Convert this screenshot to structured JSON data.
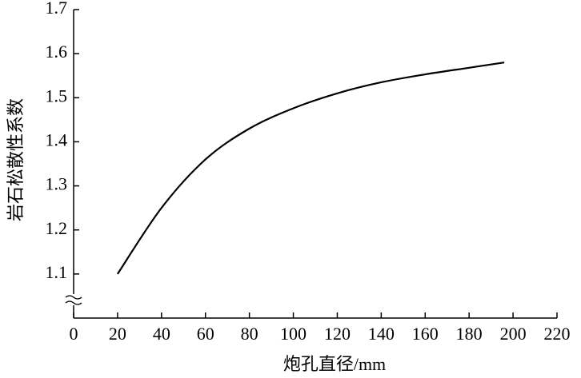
{
  "chart_data": {
    "type": "line",
    "x_label": "炮孔直径/mm",
    "y_label": "岩石松散性系数",
    "x": [
      20,
      40,
      60,
      80,
      100,
      120,
      140,
      160,
      180,
      196
    ],
    "series": [
      {
        "color": "#000000",
        "values": [
          1.1,
          1.25,
          1.36,
          1.43,
          1.476,
          1.51,
          1.535,
          1.553,
          1.568,
          1.58
        ]
      }
    ],
    "xlim": [
      0,
      220
    ],
    "xticks": [
      0,
      20,
      40,
      60,
      80,
      100,
      120,
      140,
      160,
      180,
      200,
      220
    ],
    "ylim": [
      1.0,
      1.7
    ],
    "yticks": [
      1.1,
      1.2,
      1.3,
      1.4,
      1.5,
      1.6,
      1.7
    ],
    "grid": false
  }
}
